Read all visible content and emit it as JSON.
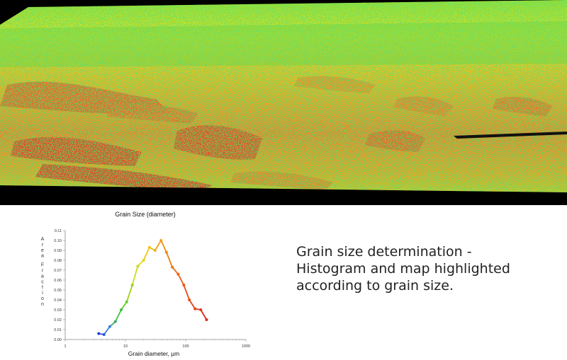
{
  "chart_data": {
    "type": "line",
    "title": "Grain Size (diameter)",
    "xlabel": "Grain diameter, µm",
    "ylabel": "Area Fraction",
    "x_scale": "log",
    "xlim": [
      1,
      1000
    ],
    "ylim": [
      0,
      0.11
    ],
    "x_ticks": [
      "1",
      "10",
      "100",
      "1000"
    ],
    "y_ticks": [
      "0.00",
      "0.01",
      "0.02",
      "0.03",
      "0.04",
      "0.05",
      "0.06",
      "0.07",
      "0.08",
      "0.09",
      "0.10",
      "0.11"
    ],
    "grid": false,
    "legend": "none",
    "series": [
      {
        "x": [
          3.6,
          4.4,
          5.5,
          6.8,
          8.5,
          10.5,
          13,
          16,
          20,
          25,
          31,
          39,
          48,
          60,
          75,
          93,
          115,
          143,
          178,
          222
        ],
        "y": [
          0.006,
          0.005,
          0.013,
          0.018,
          0.03,
          0.038,
          0.055,
          0.074,
          0.08,
          0.093,
          0.09,
          0.1,
          0.088,
          0.073,
          0.066,
          0.055,
          0.04,
          0.031,
          0.03,
          0.02
        ],
        "colors": [
          "#1f3fd6",
          "#2a55e0",
          "#3a7fe0",
          "#44aa66",
          "#3cc040",
          "#66cc22",
          "#9cd418",
          "#c8dc18",
          "#e8d418",
          "#f0c418",
          "#f0b014",
          "#f4a012",
          "#f08e12",
          "#ee7a12",
          "#ec6614",
          "#e85a16",
          "#e64e18",
          "#e2421a",
          "#de361c",
          "#d82a1c"
        ]
      }
    ]
  },
  "caption": {
    "lines": [
      "Grain size determination -",
      "Histogram and map highlighted",
      "according to grain size."
    ]
  }
}
